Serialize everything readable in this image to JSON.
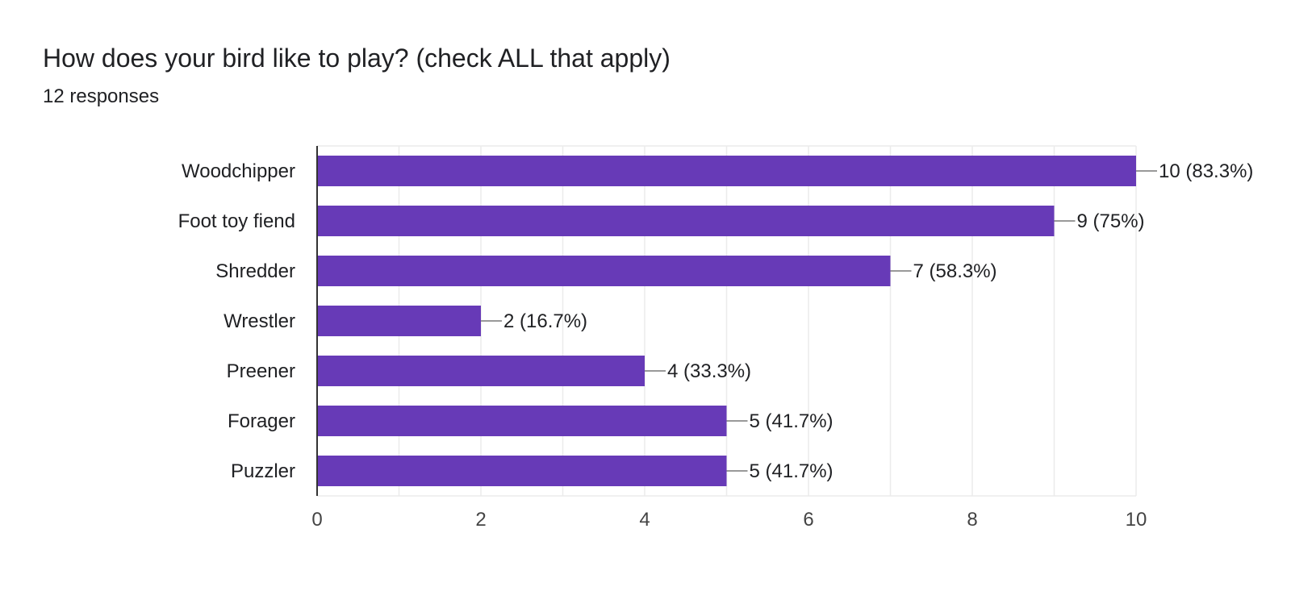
{
  "header": {
    "title": "How does your bird like to play? (check ALL that apply)",
    "responses": "12 responses"
  },
  "chart_data": {
    "type": "bar",
    "orientation": "horizontal",
    "title": "How does your bird like to play? (check ALL that apply)",
    "categories": [
      "Woodchipper",
      "Foot toy fiend",
      "Shredder",
      "Wrestler",
      "Preener",
      "Forager",
      "Puzzler"
    ],
    "values": [
      10,
      9,
      7,
      2,
      4,
      5,
      5
    ],
    "value_labels": [
      "10 (83.3%)",
      "9 (75%)",
      "7 (58.3%)",
      "2 (16.7%)",
      "4 (33.3%)",
      "5 (41.7%)",
      "5 (41.7%)"
    ],
    "xlim": [
      0,
      10
    ],
    "xticks": [
      0,
      2,
      4,
      6,
      8,
      10
    ],
    "grid": true,
    "bar_color": "#673ab7",
    "grid_color": "#ebebeb",
    "leader_color": "#999999"
  }
}
